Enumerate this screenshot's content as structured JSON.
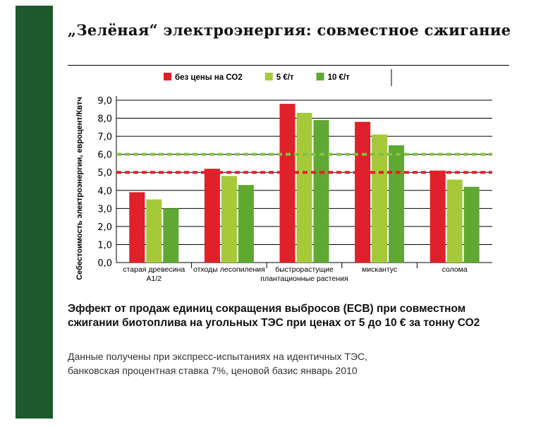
{
  "title": "„Зелёная“ электроэнергия: совместное сжигание",
  "chart_data": {
    "type": "bar",
    "ylabel": "Себестоимость электроэнергии, евроцент/Квтч",
    "ylim": [
      0,
      9
    ],
    "yticks": [
      "0,0",
      "1,0",
      "2,0",
      "3,0",
      "4,0",
      "5,0",
      "6,0",
      "7,0",
      "8,0",
      "9,0"
    ],
    "categories": [
      [
        "старая древесина",
        "А1/2"
      ],
      [
        "отходы лесопиления"
      ],
      [
        "быстрорастущие",
        "плантационные растения"
      ],
      [
        "мискантус"
      ],
      [
        "солома"
      ]
    ],
    "series": [
      {
        "name": "без цены на СО2",
        "color": "#e0202a",
        "values": [
          3.9,
          5.2,
          8.8,
          7.8,
          5.1
        ]
      },
      {
        "name": "5 €/т",
        "color": "#a6c93a",
        "values": [
          3.5,
          4.8,
          8.3,
          7.1,
          4.6
        ]
      },
      {
        "name": "10 €/т",
        "color": "#5fa832",
        "values": [
          3.0,
          4.3,
          7.9,
          6.5,
          4.2
        ]
      }
    ],
    "reference_lines": [
      {
        "value": 6.0,
        "color": "#7fc242"
      },
      {
        "value": 5.0,
        "color": "#e0202a"
      }
    ],
    "grid": true,
    "legend_position": "top"
  },
  "caption": {
    "line1": "Эффект от продаж единиц сокращения выбросов (ECB) при совместном",
    "line2": "сжигании биотоплива на угольных ТЭС при ценах от 5 до 10 € за тонну СО2"
  },
  "note": {
    "line1": "Данные получены при экспресс-испытаниях на идентичных ТЭС,",
    "line2": "банковская процентная ставка 7%, ценовой базис январь 2010"
  }
}
